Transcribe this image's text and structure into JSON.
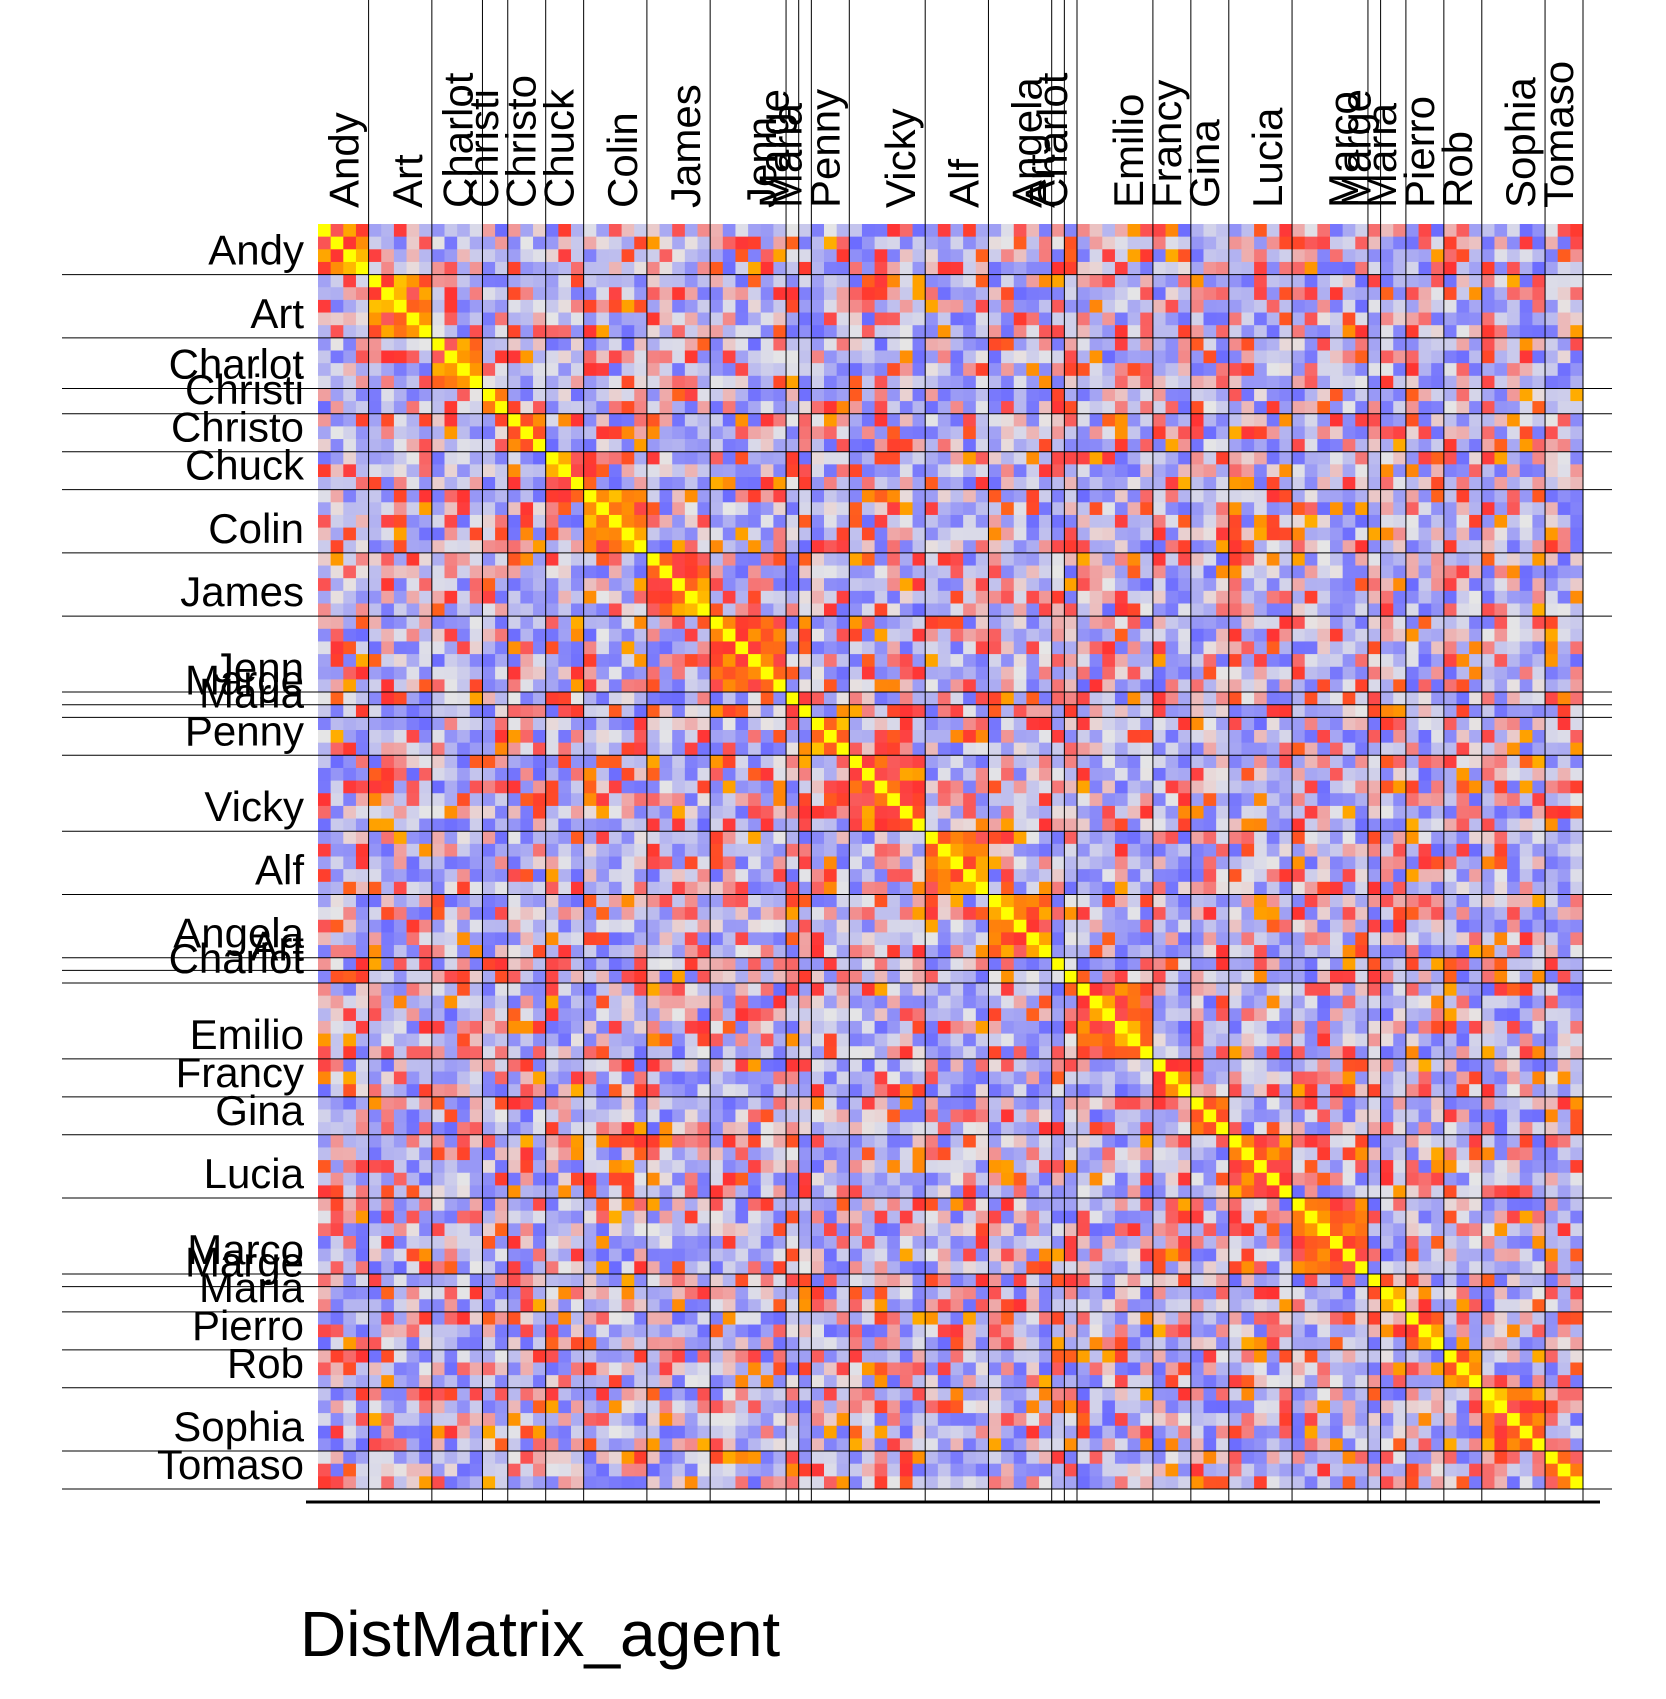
{
  "chart_data": {
    "type": "heatmap",
    "title": "DistMatrix_agent",
    "xlabel": "",
    "ylabel": "",
    "matrix_size": 100,
    "groups": [
      {
        "label": "Andy",
        "size": 4
      },
      {
        "label": "Art",
        "size": 5
      },
      {
        "label": "Charlot",
        "size": 4
      },
      {
        "label": "Christi",
        "size": 2
      },
      {
        "label": "Christo",
        "size": 3
      },
      {
        "label": "Chuck",
        "size": 3
      },
      {
        "label": "Colin",
        "size": 5
      },
      {
        "label": "James",
        "size": 5
      },
      {
        "label": "Jenn",
        "size": 6
      },
      {
        "label": "Marge",
        "size": 1
      },
      {
        "label": "Maria",
        "size": 1
      },
      {
        "label": "Penny",
        "size": 3
      },
      {
        "label": "Vicky",
        "size": 6
      },
      {
        "label": "Alf",
        "size": 5
      },
      {
        "label": "Angela",
        "size": 5
      },
      {
        "label": "Art",
        "size": 1
      },
      {
        "label": "Charlot",
        "size": 1
      },
      {
        "label": "Emilio",
        "size": 6
      },
      {
        "label": "Francy",
        "size": 3
      },
      {
        "label": "Gina",
        "size": 3
      },
      {
        "label": "Lucia",
        "size": 5
      },
      {
        "label": "Marco",
        "size": 6
      },
      {
        "label": "Marge",
        "size": 1
      },
      {
        "label": "Maria",
        "size": 2
      },
      {
        "label": "Pierro",
        "size": 3
      },
      {
        "label": "Rob",
        "size": 3
      },
      {
        "label": "Sophia",
        "size": 5
      },
      {
        "label": "Tomaso",
        "size": 3
      }
    ],
    "value_range": [
      0,
      1
    ],
    "diagonal_value": 0,
    "color_scale": [
      {
        "value": 0.0,
        "color": "#ffff00"
      },
      {
        "value": 0.1,
        "color": "#ff9900"
      },
      {
        "value": 0.25,
        "color": "#ff3333"
      },
      {
        "value": 0.5,
        "color": "#e6e6e6"
      },
      {
        "value": 1.0,
        "color": "#6b6bff"
      }
    ],
    "cell_values_note_seed": 1729,
    "grid": true,
    "legend": "none"
  }
}
